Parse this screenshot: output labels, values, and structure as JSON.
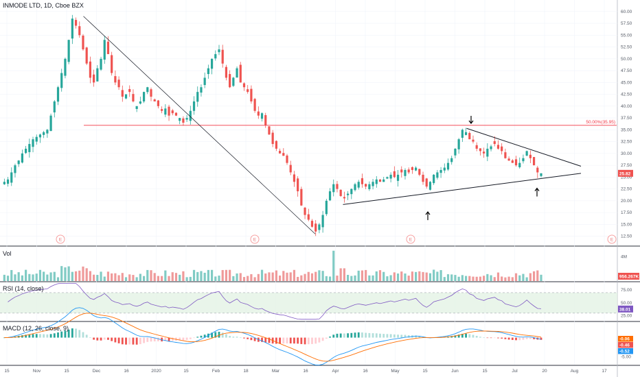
{
  "header": {
    "title": "INMODE LTD, 1D, Cboe BZX",
    "vol_label": "Vol",
    "rsi_label": "RSI (14, close)",
    "macd_label": "MACD (12, 26, close, 9)"
  },
  "colors": {
    "up": "#26a69a",
    "down": "#ef5350",
    "fib": "#f23645",
    "rsi": "#7e57c2",
    "rsi_band": "#e3f2e5",
    "macd": "#2196f3",
    "signal": "#ff6d00",
    "trendline": "#131722"
  },
  "chart_data": [
    {
      "type": "candlestick",
      "title": "INMODE LTD, 1D, Cboe BZX",
      "ylim": [
        11,
        62
      ],
      "y_ticks": [
        "60.00",
        "57.50",
        "55.00",
        "52.50",
        "50.00",
        "47.50",
        "45.00",
        "42.50",
        "40.00",
        "37.50",
        "35.00",
        "32.50",
        "30.00",
        "27.50",
        "25.00",
        "22.50",
        "20.00",
        "17.50",
        "15.00",
        "12.50"
      ],
      "y_tick_values": [
        60,
        57.5,
        55,
        52.5,
        50,
        47.5,
        45,
        42.5,
        40,
        37.5,
        35,
        32.5,
        30,
        27.5,
        25,
        22.5,
        20,
        17.5,
        15,
        12.5
      ],
      "x_ticks": [
        "15",
        "Nov",
        "15",
        "Dec",
        "16",
        "2020",
        "15",
        "Feb",
        "18",
        "Mar",
        "16",
        "Apr",
        "16",
        "May",
        "15",
        "Jun",
        "15",
        "Jul",
        "20",
        "Aug",
        "17"
      ],
      "close_path": [
        24,
        24.5,
        26,
        27.5,
        28.5,
        30,
        31,
        32,
        33,
        33.5,
        34,
        34.5,
        35,
        38,
        41,
        44,
        47,
        50,
        54,
        58.5,
        57,
        55,
        52,
        49,
        46,
        45,
        48,
        50,
        54,
        51,
        47,
        45,
        44,
        42,
        42.5,
        43,
        41,
        40,
        41,
        43,
        44,
        42,
        41,
        40,
        39,
        39.5,
        38,
        38.5,
        38,
        37.5,
        36.5,
        37.5,
        39,
        41,
        43,
        44,
        46,
        48,
        50,
        51,
        52,
        49,
        46,
        44,
        46,
        48,
        45,
        44,
        43,
        41,
        39,
        38,
        38.5,
        36,
        34,
        32,
        31,
        30,
        29.5,
        28,
        26,
        24,
        22,
        19,
        17,
        16,
        14.5,
        13.5,
        15,
        17,
        20,
        22,
        23.5,
        22.5,
        21,
        20.5,
        21.5,
        22.5,
        23.5,
        24,
        23.5,
        23,
        23.5,
        24,
        24.5,
        24,
        24.5,
        25,
        25.5,
        25,
        25.5,
        26,
        26.5,
        26,
        26.5,
        27,
        25.5,
        24,
        23,
        24,
        25.5,
        26,
        26.5,
        27,
        28,
        29,
        31,
        33,
        35,
        34.5,
        33,
        32.5,
        31,
        30.5,
        30,
        31,
        31.5,
        32,
        31,
        30.5,
        29,
        28.5,
        28,
        27.5,
        28,
        29,
        30.5,
        29,
        27.5,
        26,
        25.8
      ],
      "last_price": "25.82",
      "fib_level": 35.95,
      "fib_label": "50.00%(35.95)",
      "earnings_marker": "E",
      "earnings_at": [
        0.096,
        0.414,
        0.667,
        0.998
      ],
      "arrows": [
        {
          "dir": "down",
          "at_date": "Jun 8",
          "value": 36.5
        },
        {
          "dir": "up",
          "at_date": "May 15",
          "value": 17.5
        },
        {
          "dir": "up",
          "at_date": "Jul 21",
          "value": 22.5
        }
      ],
      "trendlines": [
        {
          "name": "downtrend",
          "from": [
            0.135,
            59.0
          ],
          "to": [
            0.51,
            13.0
          ]
        },
        {
          "name": "upper-wedge",
          "from": [
            0.755,
            35.3
          ],
          "to": [
            0.94,
            27.3
          ]
        },
        {
          "name": "lower-wedge",
          "from": [
            0.555,
            19.2
          ],
          "to": [
            0.94,
            25.8
          ]
        }
      ]
    },
    {
      "type": "bar",
      "title": "Vol",
      "ylim": [
        0,
        5200000
      ],
      "y_ticks": [
        "4M"
      ],
      "y_tick_values": [
        4000000
      ],
      "last_value": "956.267K"
    },
    {
      "type": "line",
      "title": "RSI (14, close)",
      "ylim": [
        15,
        90
      ],
      "band": [
        30,
        70
      ],
      "y_ticks": [
        "75.00",
        "50.00",
        "25.00"
      ],
      "y_tick_values": [
        75,
        50,
        25
      ],
      "last_value": "38.01"
    },
    {
      "type": "line",
      "title": "MACD (12, 26, close, 9)",
      "ylim": [
        -7,
        4
      ],
      "y_ticks": [
        "-5.00"
      ],
      "y_tick_values": [
        -5
      ],
      "last_values": [
        "-0.06",
        "-0.46",
        "-0.52"
      ]
    }
  ]
}
